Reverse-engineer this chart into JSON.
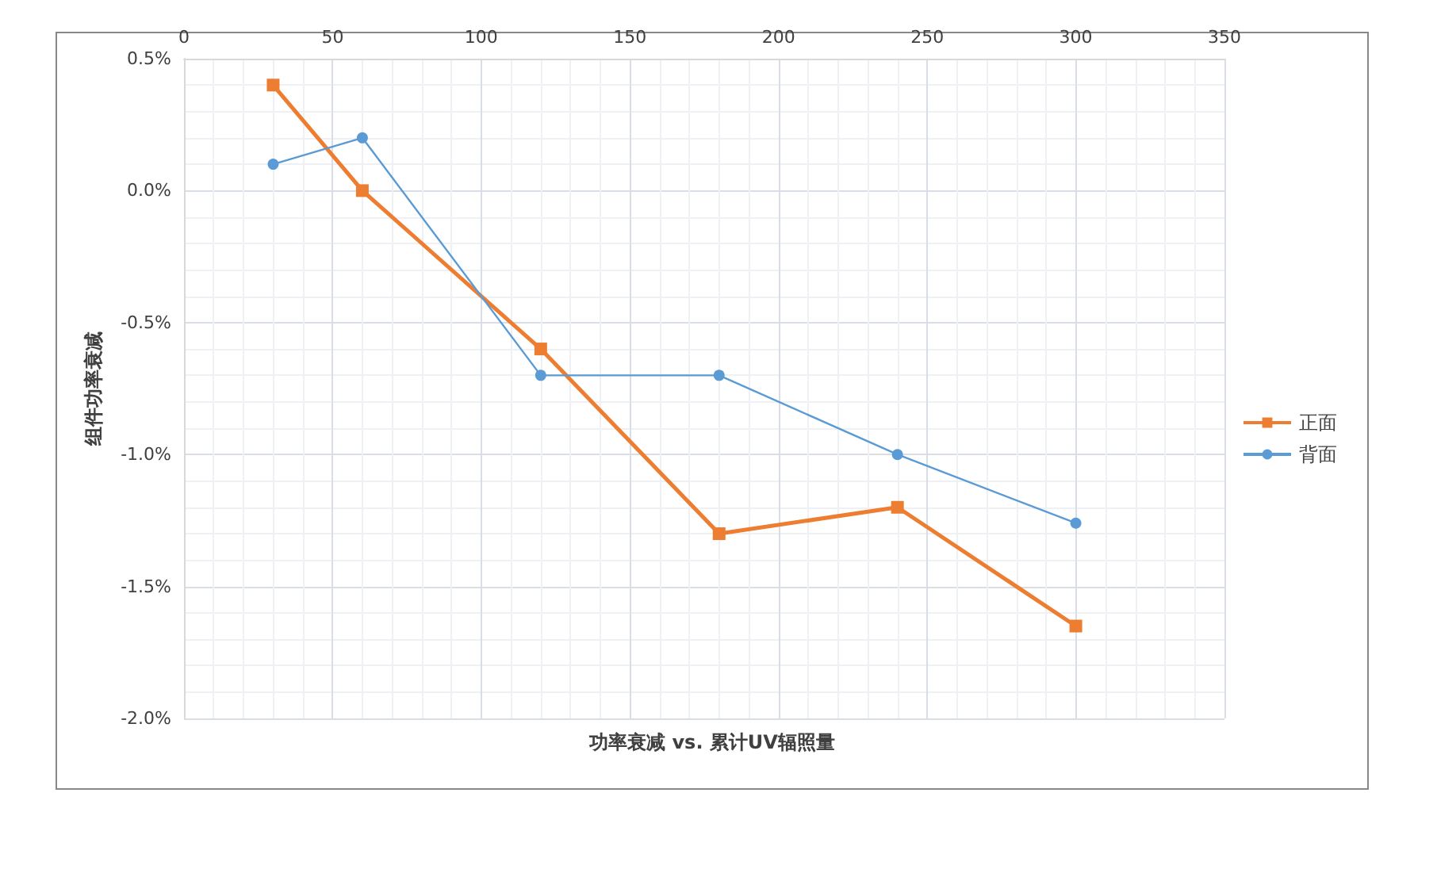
{
  "chart_data": {
    "type": "line",
    "xlabel": "功率衰减 vs. 累计UV辐照量",
    "ylabel": "组件功率衰减",
    "x": [
      30,
      60,
      120,
      180,
      240,
      300
    ],
    "series": [
      {
        "name": "正面",
        "color": "#ed7d31",
        "marker": "square",
        "values": [
          0.4,
          0.0,
          -0.6,
          -1.3,
          -1.2,
          -1.65
        ]
      },
      {
        "name": "背面",
        "color": "#5b9bd5",
        "marker": "circle",
        "values": [
          0.1,
          0.2,
          -0.7,
          -0.7,
          -1.0,
          -1.26
        ]
      }
    ],
    "xlim": [
      0,
      350
    ],
    "xticks": [
      0,
      50,
      100,
      150,
      200,
      250,
      300,
      350
    ],
    "ylim": [
      -2.0,
      0.5
    ],
    "yticks": [
      {
        "value": -2.0,
        "label": "-2.0%"
      },
      {
        "value": -1.5,
        "label": "-1.5%"
      },
      {
        "value": -1.0,
        "label": "-1.0%"
      },
      {
        "value": -0.5,
        "label": "-0.5%"
      },
      {
        "value": 0.0,
        "label": "0.0%"
      },
      {
        "value": 0.5,
        "label": "0.5%"
      }
    ],
    "grid": true,
    "legend": "right",
    "line_style": "solid"
  }
}
